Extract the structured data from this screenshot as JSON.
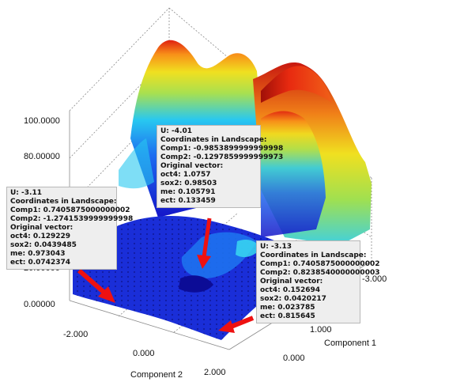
{
  "chart_data": {
    "type": "surface3d",
    "title": "",
    "xlabel": "Component 1",
    "ylabel": "Component 2",
    "zlabel": "",
    "x_ticks": [
      "-3.000",
      "1.000",
      "0.000"
    ],
    "y_ticks": [
      "-2.000",
      "0.000",
      "2.000"
    ],
    "z_ticks": [
      "100.0000",
      "80.00000",
      "20.00000",
      "0.00000"
    ],
    "colormap": [
      "#1010c8",
      "#1e6cf0",
      "#20d0e8",
      "#70e060",
      "#f0f020",
      "#f8a018",
      "#e02010"
    ],
    "grid": true,
    "annotations": [
      {
        "u_label": "U: -4.01",
        "lines": [
          "Coordinates in Landscape:",
          "Comp1: -0.9853899999999998",
          "Comp2: -0.1297859999999973",
          "Original vector:",
          "oct4: 1.0757",
          "sox2: 0.98503",
          "me: 0.105791",
          "ect: 0.133459"
        ]
      },
      {
        "u_label": "U: -3.11",
        "lines": [
          "Coordinates in Landscape:",
          "Comp1: 0.7405875000000002",
          "Comp2: -1.2741539999999998",
          "Original vector:",
          "oct4: 0.129229",
          "sox2: 0.0439485",
          "me: 0.973043",
          "ect: 0.0742374"
        ]
      },
      {
        "u_label": "U: -3.13",
        "lines": [
          "Coordinates in Landscape:",
          "Comp1: 0.7405875000000002",
          "Comp2: 0.8238540000000003",
          "Original vector:",
          "oct4: 0.152694",
          "sox2: 0.0420217",
          "me: 0.023785",
          "ect: 0.815645"
        ]
      }
    ]
  },
  "colors": {
    "arrow": "#ee1111",
    "tooltip_bg": "#eeeeee"
  }
}
